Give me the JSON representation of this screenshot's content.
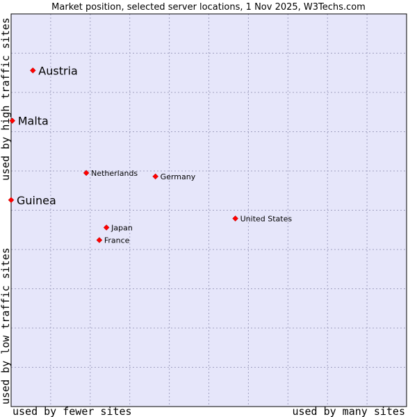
{
  "chart_data": {
    "type": "scatter",
    "title": "Market position, selected server locations, 1 Nov 2025, W3Techs.com",
    "xlabel_left": "used by fewer sites",
    "xlabel_right": "used by many sites",
    "ylabel_bottom": "used by low traffic sites",
    "ylabel_top": "used by high traffic sites",
    "xlim": [
      0,
      100
    ],
    "ylim": [
      0,
      100
    ],
    "grid": true,
    "colors": {
      "plot_background": "#e6e6fa",
      "grid": "#a0a0c0",
      "marker": "#ff0000",
      "border": "#000000"
    },
    "points": [
      {
        "label": "Austria",
        "x": 5.5,
        "y": 85.6,
        "emphasis": true
      },
      {
        "label": "Malta",
        "x": 0.3,
        "y": 72.8,
        "emphasis": true
      },
      {
        "label": "Guinea",
        "x": 0.0,
        "y": 52.6,
        "emphasis": true
      },
      {
        "label": "Netherlands",
        "x": 19.0,
        "y": 59.5,
        "emphasis": false
      },
      {
        "label": "Germany",
        "x": 36.5,
        "y": 58.6,
        "emphasis": false
      },
      {
        "label": "United States",
        "x": 56.7,
        "y": 47.9,
        "emphasis": false
      },
      {
        "label": "Japan",
        "x": 24.1,
        "y": 45.6,
        "emphasis": false
      },
      {
        "label": "France",
        "x": 22.3,
        "y": 42.4,
        "emphasis": false
      }
    ]
  }
}
